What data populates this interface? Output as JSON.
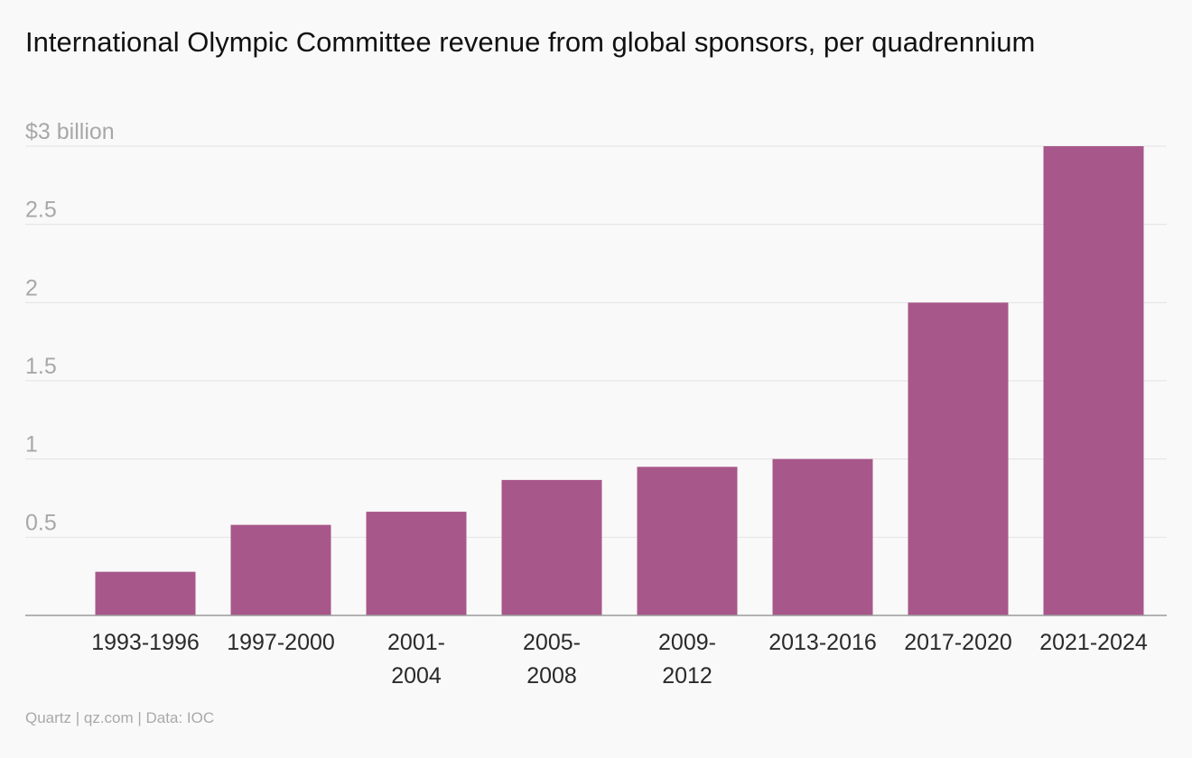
{
  "chart_data": {
    "type": "bar",
    "title": "International Olympic Committee revenue from global sponsors, per quadrennium",
    "ylabel": "",
    "xlabel": "",
    "y_unit_label": "$3 billion",
    "ylim": [
      0,
      3
    ],
    "yticks": [
      0.5,
      1,
      1.5,
      2,
      2.5,
      3
    ],
    "ytick_labels": [
      "0.5",
      "1",
      "1.5",
      "2",
      "2.5",
      "$3 billion"
    ],
    "categories": [
      [
        "1993-1996"
      ],
      [
        "1997-2000"
      ],
      [
        "2001-",
        "2004"
      ],
      [
        "2005-",
        "2008"
      ],
      [
        "2009-",
        "2012"
      ],
      [
        "2013-2016"
      ],
      [
        "2017-2020"
      ],
      [
        "2021-2024"
      ]
    ],
    "values": [
      0.279,
      0.579,
      0.663,
      0.866,
      0.95,
      1.0,
      2.0,
      3.0
    ],
    "bar_color": "#a8578a",
    "grid": true,
    "legend": "none"
  },
  "footer": {
    "source": "Quartz | qz.com | Data: IOC"
  }
}
